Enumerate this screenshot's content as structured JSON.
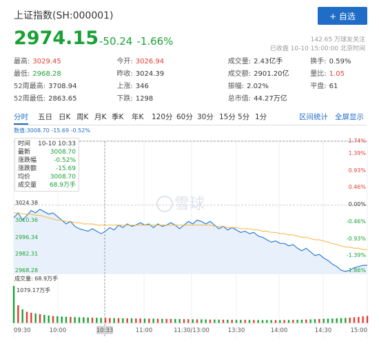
{
  "header": {
    "title": "上证指数(SH:000001)",
    "add_button": "+ 自选",
    "price": "2974.15",
    "change": "-50.24",
    "change_pct": "-1.66%",
    "followers": "142.65 万球友关注",
    "status": "已收盘 10-10 15:00:00 北京时间"
  },
  "stats": [
    [
      {
        "k": "最高:",
        "v": "3029.45",
        "c": "red"
      },
      {
        "k": "今开:",
        "v": "3026.94",
        "c": "red"
      },
      {
        "k": "成交量:",
        "v": "2.43亿手",
        "c": ""
      },
      {
        "k": "换手:",
        "v": "0.59%",
        "c": ""
      }
    ],
    [
      {
        "k": "最低:",
        "v": "2968.28",
        "c": "green"
      },
      {
        "k": "昨收:",
        "v": "3024.39",
        "c": ""
      },
      {
        "k": "成交额:",
        "v": "2901.20亿",
        "c": ""
      },
      {
        "k": "量比:",
        "v": "1.05",
        "c": "red"
      }
    ],
    [
      {
        "k": "52周最高:",
        "v": "3708.94",
        "c": ""
      },
      {
        "k": "上涨:",
        "v": "346",
        "c": ""
      },
      {
        "k": "振幅:",
        "v": "2.02%",
        "c": ""
      },
      {
        "k": "平盘:",
        "v": "61",
        "c": ""
      }
    ],
    [
      {
        "k": "52周最低:",
        "v": "2863.65",
        "c": ""
      },
      {
        "k": "下跌:",
        "v": "1298",
        "c": ""
      },
      {
        "k": "总市值:",
        "v": "44.27万亿",
        "c": ""
      },
      {
        "k": "",
        "v": "",
        "c": ""
      }
    ]
  ],
  "tabs": [
    "分时",
    "五日",
    "日K",
    "周K",
    "月K",
    "季K",
    "年K",
    "120分",
    "60分",
    "30分",
    "15分",
    "5分",
    "1分"
  ],
  "tab_links": [
    "区间统计",
    "全屏显示"
  ],
  "info_line": "数值:3008.70 -15.69 -0.52%",
  "tooltip": {
    "rows": [
      {
        "k": "时间",
        "v": "10-10 10:33"
      },
      {
        "k": "最新",
        "v": "3008.70"
      },
      {
        "k": "涨跌幅",
        "v": "-0.52%"
      },
      {
        "k": "涨跌额",
        "v": "-15.69"
      },
      {
        "k": "均价",
        "v": "3008.70"
      },
      {
        "k": "成交量",
        "v": "68.9万手"
      }
    ]
  },
  "watermark": "雪球",
  "chart_data": {
    "type": "line",
    "y_left_ticks": [
      "3024.38",
      "3010.36",
      "2996.34",
      "2982.31",
      "2968.28"
    ],
    "y_right_ticks": [
      "1.74%",
      "1.39%",
      "0.93%",
      "0.46%",
      "0.00%",
      "-0.46%",
      "-0.93%",
      "-1.39%",
      "-1.86%"
    ],
    "x_ticks": [
      "09:30",
      "10:00",
      "10:33",
      "11:00",
      "11:30/13:00",
      "13:30",
      "14:00",
      "14:30",
      "15:00"
    ],
    "ylim": [
      2968.28,
      3076.8
    ],
    "prev_close": 3024.39,
    "volume_label": "成交量: 68.9万手",
    "volume_max_label": "1079.17万手",
    "series": [
      {
        "values": [
          3014,
          3018,
          3012,
          3016,
          3020,
          3018,
          3021,
          3019,
          3017,
          3018,
          3015,
          3012,
          3009,
          3011,
          3007,
          3005,
          3004,
          3003,
          3005,
          3003,
          3001,
          3003,
          3006,
          3004,
          3008,
          3006,
          3009,
          3007,
          3008,
          3010,
          3008,
          3009,
          3006,
          3009,
          3007,
          3008,
          3010,
          3008,
          3005,
          3008,
          3011,
          3009,
          3012,
          3011,
          3009,
          3011,
          3008,
          3005,
          3007,
          3004,
          3006,
          3004,
          3002,
          3003,
          3001,
          3002,
          2999,
          2998,
          2996,
          2994,
          2995,
          2993,
          2993,
          2991,
          2992,
          2989,
          2987,
          2989,
          2986,
          2983,
          2984,
          2981,
          2979,
          2976,
          2974,
          2971,
          2970,
          2971,
          2973,
          2974,
          2975,
          2975
        ]
      },
      {
        "values": [
          3018,
          3018,
          3017,
          3017,
          3017,
          3016,
          3016,
          3015,
          3014,
          3013,
          3012,
          3012,
          3011,
          3011,
          3010,
          3010,
          3009,
          3009,
          3009,
          3008,
          3008,
          3008,
          3008,
          3008,
          3008,
          3008,
          3008,
          3008,
          3008,
          3008,
          3008,
          3008,
          3008,
          3008,
          3008,
          3008,
          3008,
          3008,
          3008,
          3008,
          3008,
          3008,
          3008,
          3008,
          3008,
          3008,
          3007,
          3007,
          3007,
          3006,
          3006,
          3006,
          3005,
          3005,
          3005,
          3004,
          3004,
          3003,
          3003,
          3002,
          3002,
          3001,
          3001,
          3000,
          3000,
          2999,
          2998,
          2998,
          2997,
          2996,
          2996,
          2995,
          2994,
          2993,
          2992,
          2991,
          2990,
          2990,
          2989,
          2989,
          2988,
          2988
        ]
      }
    ],
    "volume": [
      1079,
      520,
      400,
      330,
      300,
      280,
      260,
      240,
      220,
      210,
      200,
      190,
      185,
      180,
      175,
      170,
      170,
      165,
      160,
      155,
      150,
      150,
      148,
      145,
      145,
      140,
      140,
      138,
      135,
      135,
      130,
      130,
      128,
      125,
      125,
      122,
      120,
      120,
      118,
      115,
      115,
      112,
      110,
      110,
      108,
      105,
      105,
      102,
      100,
      100,
      98,
      96,
      95,
      95,
      93,
      92,
      92,
      90,
      90,
      88,
      88,
      88,
      90,
      92,
      95,
      98,
      100,
      105,
      110,
      115,
      120,
      125,
      130,
      135,
      140,
      145,
      150,
      160,
      170,
      180,
      195,
      210
    ]
  }
}
